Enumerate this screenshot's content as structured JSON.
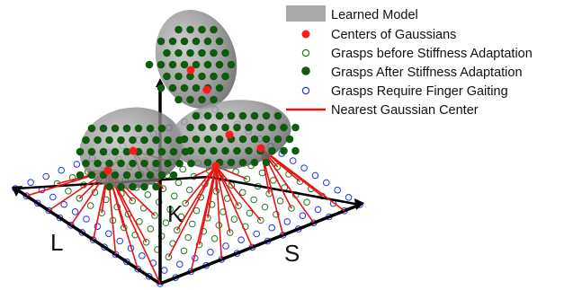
{
  "axes": {
    "k_label": "K",
    "l_label": "L",
    "s_label": "S"
  },
  "legend": {
    "items": [
      {
        "label": "Learned Model",
        "symbol": "gray-rect-icon",
        "color": "#a9a9a9"
      },
      {
        "label": "Centers of Gaussians",
        "symbol": "red-dot-icon",
        "color": "#ff1a1a"
      },
      {
        "label": "Grasps before Stiffness Adaptation",
        "symbol": "green-ring-icon",
        "color": "#1f7a1f"
      },
      {
        "label": "Grasps After Stiffness Adaptation",
        "symbol": "green-dot-icon",
        "color": "#0e5a0e"
      },
      {
        "label": "Grasps Require Finger Gaiting",
        "symbol": "blue-ring-icon",
        "color": "#2233ee"
      },
      {
        "label": "Nearest Gaussian Center",
        "symbol": "red-line-icon",
        "color": "#ee1111"
      }
    ]
  },
  "colors": {
    "axis": "#000000",
    "link": "#ee1111",
    "center": "#ff1a1a",
    "gaussian": "#808080",
    "before": "#1f7a1f",
    "after": "#0e5a0e",
    "gaiting": "#2233ee"
  }
}
